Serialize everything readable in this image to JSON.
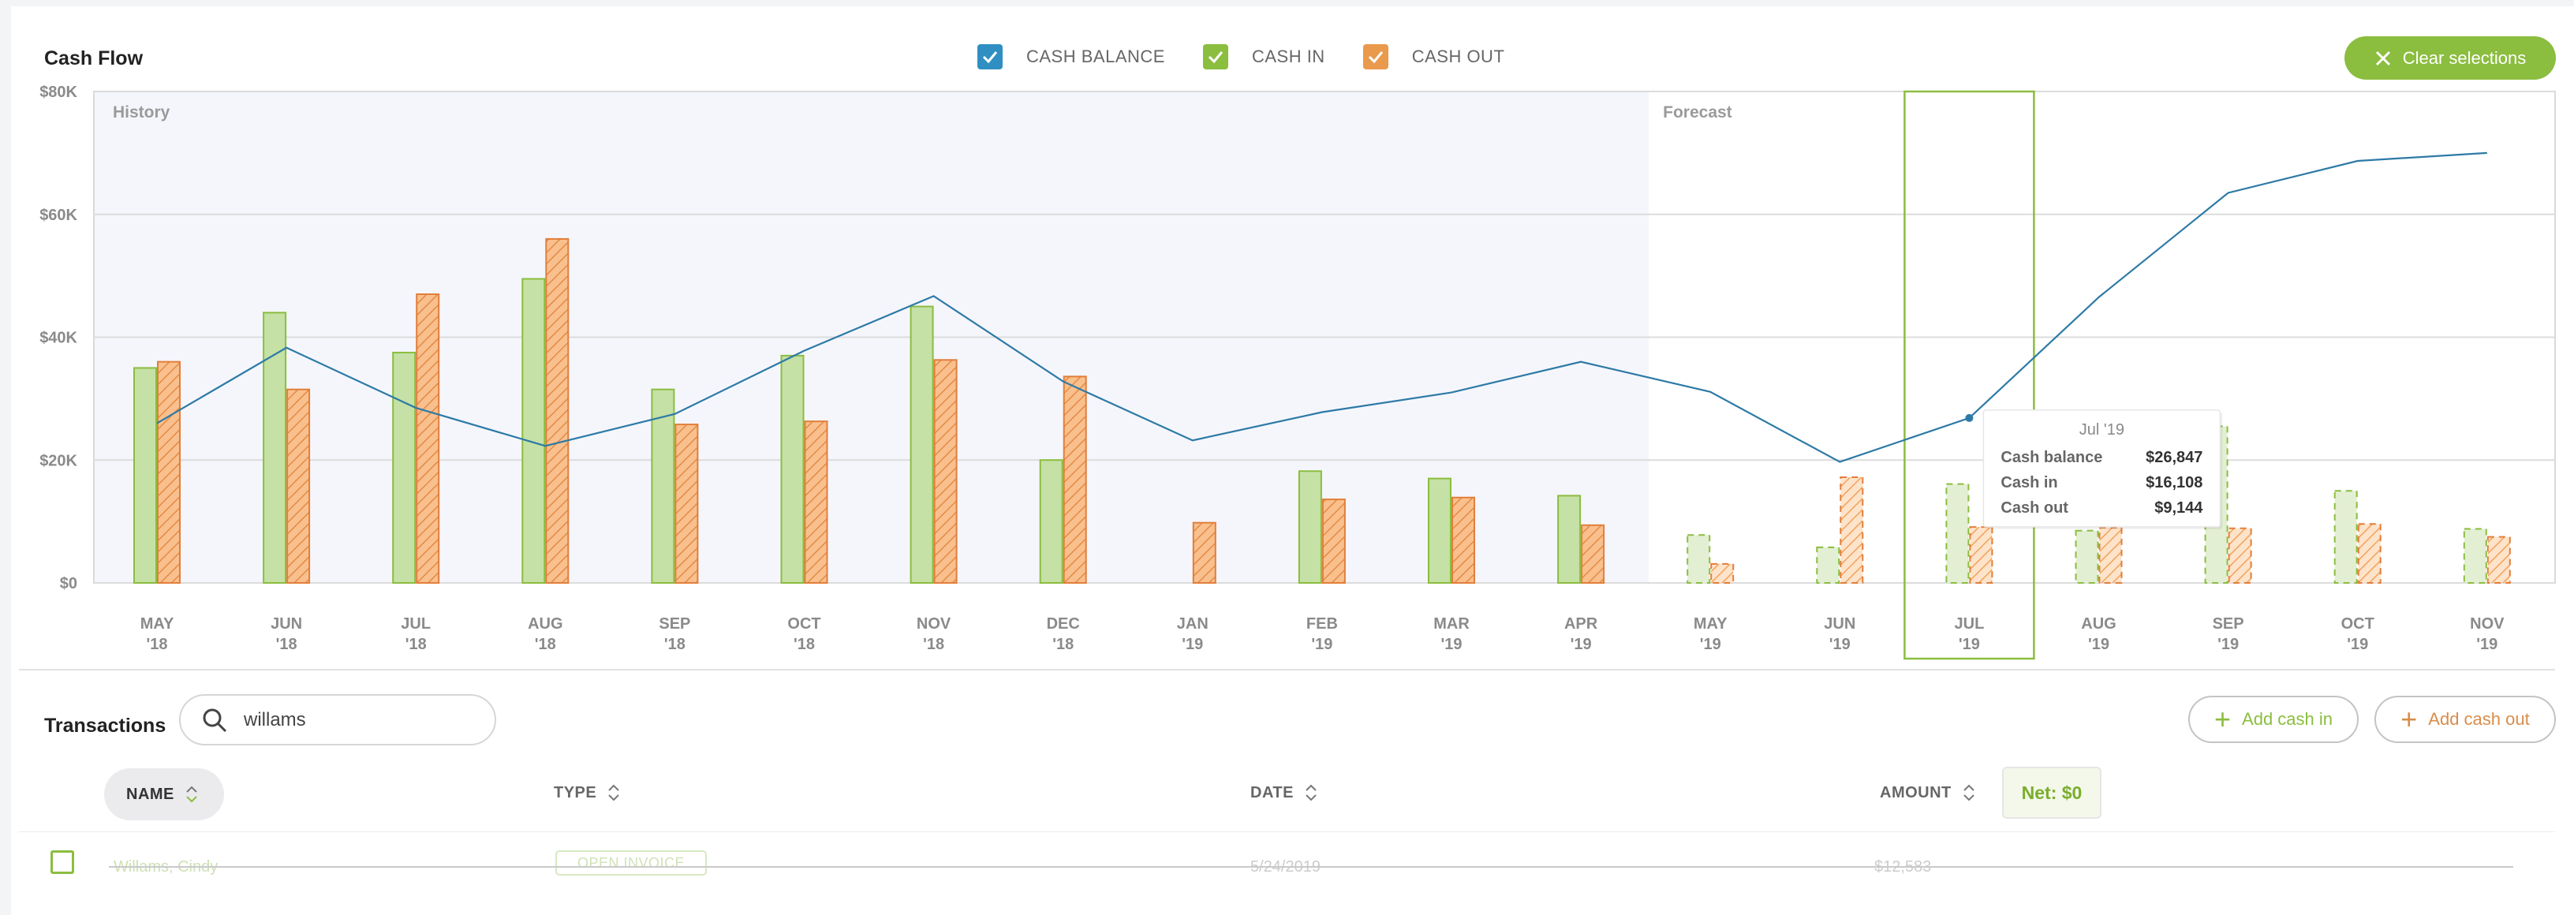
{
  "header": {
    "title": "Cash Flow",
    "legend": [
      {
        "label": "CASH BALANCE",
        "color": "#2f8fc2",
        "checked": true
      },
      {
        "label": "CASH IN",
        "color": "#8bbd3f",
        "checked": true
      },
      {
        "label": "CASH OUT",
        "color": "#e99a4c",
        "checked": true
      }
    ],
    "clear_label": "Clear selections"
  },
  "chart_data": {
    "type": "bar",
    "regions": {
      "history": "History",
      "forecast": "Forecast"
    },
    "categories": [
      "MAY|'18",
      "JUN|'18",
      "JUL|'18",
      "AUG|'18",
      "SEP|'18",
      "OCT|'18",
      "NOV|'18",
      "DEC|'18",
      "JAN|'19",
      "FEB|'19",
      "MAR|'19",
      "APR|'19",
      "MAY|'19",
      "JUN|'19",
      "JUL|'19",
      "AUG|'19",
      "SEP|'19",
      "OCT|'19",
      "NOV|'19"
    ],
    "forecast_start_index": 12,
    "selected_index": 14,
    "ylim": [
      0,
      80000
    ],
    "y_ticks": [
      {
        "value": 0,
        "label": "$0"
      },
      {
        "value": 20000,
        "label": "$20K"
      },
      {
        "value": 40000,
        "label": "$40K"
      },
      {
        "value": 60000,
        "label": "$60K"
      },
      {
        "value": 80000,
        "label": "$80K"
      }
    ],
    "grid": true,
    "series": [
      {
        "name": "Cash in",
        "kind": "bar",
        "color": "#8bbd3f",
        "fill": "#c5e1a5",
        "values": [
          35000,
          44000,
          37500,
          49500,
          31500,
          37000,
          45000,
          20000,
          0,
          18200,
          17000,
          14200,
          7800,
          5800,
          16100,
          8500,
          25500,
          15000,
          8800
        ]
      },
      {
        "name": "Cash out",
        "kind": "bar",
        "color": "#e27e3a",
        "fill": "#f7bb86",
        "values": [
          36000,
          31500,
          47000,
          56000,
          25800,
          26300,
          36300,
          33600,
          9800,
          13600,
          13900,
          9400,
          3100,
          17200,
          9100,
          9000,
          8900,
          9600,
          7500
        ]
      },
      {
        "name": "Cash balance",
        "kind": "line",
        "color": "#2d7aa6",
        "values": [
          26000,
          38300,
          28500,
          22300,
          27500,
          37800,
          46700,
          32800,
          23200,
          27800,
          31000,
          36000,
          31100,
          19700,
          26847,
          46500,
          63500,
          68700,
          70000
        ]
      }
    ],
    "tooltip": {
      "title": "Jul '19",
      "rows": [
        {
          "label": "Cash balance",
          "value": "$26,847"
        },
        {
          "label": "Cash in",
          "value": "$16,108"
        },
        {
          "label": "Cash out",
          "value": "$9,144"
        }
      ]
    }
  },
  "transactions": {
    "title": "Transactions",
    "search_value": "willams",
    "add_cash_in": "Add cash in",
    "add_cash_out": "Add cash out",
    "columns": {
      "name": "NAME",
      "type": "TYPE",
      "date": "DATE",
      "amount": "AMOUNT"
    },
    "net": "Net: $0",
    "rows": [
      {
        "name": "Willams, Cindy",
        "type": "OPEN INVOICE",
        "date": "5/24/2019",
        "amount": "$12,583"
      }
    ]
  }
}
